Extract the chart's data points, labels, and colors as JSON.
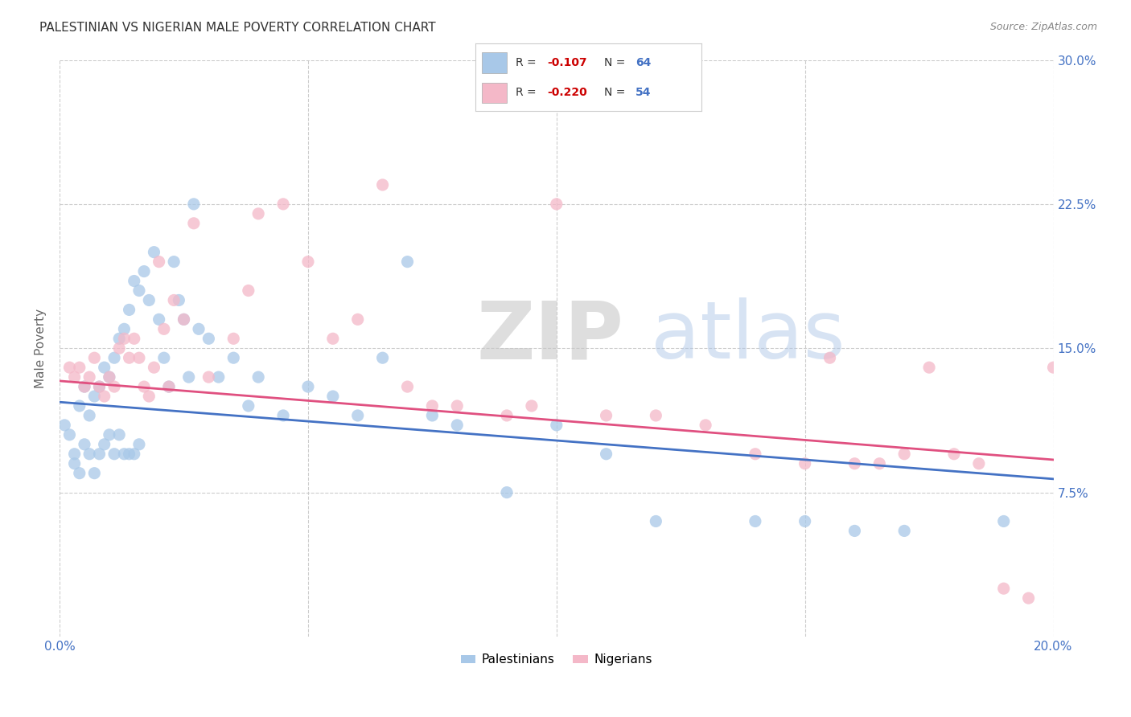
{
  "title": "PALESTINIAN VS NIGERIAN MALE POVERTY CORRELATION CHART",
  "source": "Source: ZipAtlas.com",
  "ylabel": "Male Poverty",
  "watermark_zip": "ZIP",
  "watermark_atlas": "atlas",
  "xlim": [
    0.0,
    0.2
  ],
  "ylim": [
    0.0,
    0.3
  ],
  "color_blue": "#a8c8e8",
  "color_pink": "#f4b8c8",
  "color_blue_line": "#4472c4",
  "color_pink_line": "#e05080",
  "legend_label1": "Palestinians",
  "legend_label2": "Nigerians",
  "title_color": "#333333",
  "axis_color": "#4472c4",
  "blue_line_start_y": 0.122,
  "blue_line_end_y": 0.082,
  "pink_line_start_y": 0.133,
  "pink_line_end_y": 0.092,
  "blue_scatter_x": [
    0.001,
    0.002,
    0.003,
    0.003,
    0.004,
    0.004,
    0.005,
    0.005,
    0.006,
    0.006,
    0.007,
    0.007,
    0.008,
    0.008,
    0.009,
    0.009,
    0.01,
    0.01,
    0.011,
    0.011,
    0.012,
    0.012,
    0.013,
    0.013,
    0.014,
    0.014,
    0.015,
    0.015,
    0.016,
    0.016,
    0.017,
    0.018,
    0.019,
    0.02,
    0.021,
    0.022,
    0.023,
    0.024,
    0.025,
    0.026,
    0.027,
    0.028,
    0.03,
    0.032,
    0.035,
    0.038,
    0.04,
    0.045,
    0.05,
    0.055,
    0.06,
    0.065,
    0.07,
    0.075,
    0.08,
    0.09,
    0.1,
    0.11,
    0.12,
    0.14,
    0.15,
    0.16,
    0.17,
    0.19
  ],
  "blue_scatter_y": [
    0.11,
    0.105,
    0.095,
    0.09,
    0.12,
    0.085,
    0.13,
    0.1,
    0.115,
    0.095,
    0.125,
    0.085,
    0.13,
    0.095,
    0.14,
    0.1,
    0.135,
    0.105,
    0.145,
    0.095,
    0.155,
    0.105,
    0.16,
    0.095,
    0.17,
    0.095,
    0.185,
    0.095,
    0.18,
    0.1,
    0.19,
    0.175,
    0.2,
    0.165,
    0.145,
    0.13,
    0.195,
    0.175,
    0.165,
    0.135,
    0.225,
    0.16,
    0.155,
    0.135,
    0.145,
    0.12,
    0.135,
    0.115,
    0.13,
    0.125,
    0.115,
    0.145,
    0.195,
    0.115,
    0.11,
    0.075,
    0.11,
    0.095,
    0.06,
    0.06,
    0.06,
    0.055,
    0.055,
    0.06
  ],
  "pink_scatter_x": [
    0.002,
    0.003,
    0.004,
    0.005,
    0.006,
    0.007,
    0.008,
    0.009,
    0.01,
    0.011,
    0.012,
    0.013,
    0.014,
    0.015,
    0.016,
    0.017,
    0.018,
    0.019,
    0.02,
    0.021,
    0.022,
    0.023,
    0.025,
    0.027,
    0.03,
    0.035,
    0.038,
    0.04,
    0.045,
    0.05,
    0.055,
    0.06,
    0.065,
    0.07,
    0.075,
    0.08,
    0.09,
    0.095,
    0.1,
    0.11,
    0.12,
    0.13,
    0.14,
    0.15,
    0.155,
    0.16,
    0.165,
    0.17,
    0.175,
    0.18,
    0.185,
    0.19,
    0.195,
    0.2
  ],
  "pink_scatter_y": [
    0.14,
    0.135,
    0.14,
    0.13,
    0.135,
    0.145,
    0.13,
    0.125,
    0.135,
    0.13,
    0.15,
    0.155,
    0.145,
    0.155,
    0.145,
    0.13,
    0.125,
    0.14,
    0.195,
    0.16,
    0.13,
    0.175,
    0.165,
    0.215,
    0.135,
    0.155,
    0.18,
    0.22,
    0.225,
    0.195,
    0.155,
    0.165,
    0.235,
    0.13,
    0.12,
    0.12,
    0.115,
    0.12,
    0.225,
    0.115,
    0.115,
    0.11,
    0.095,
    0.09,
    0.145,
    0.09,
    0.09,
    0.095,
    0.14,
    0.095,
    0.09,
    0.025,
    0.02,
    0.14
  ]
}
